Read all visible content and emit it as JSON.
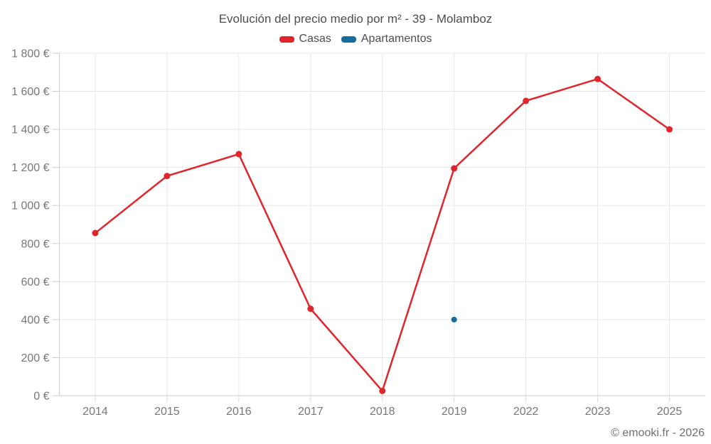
{
  "chart": {
    "title": "Evolución del precio medio por m² - 39 - Molamboz",
    "attribution": "© emooki.fr - 2026",
    "legend": [
      {
        "label": "Casas",
        "color": "#e0252b"
      },
      {
        "label": "Apartamentos",
        "color": "#156e9d"
      }
    ]
  },
  "chart_data": {
    "type": "line",
    "title": "Evolución del precio medio por m² - 39 - Molamboz",
    "xlabel": "",
    "ylabel": "",
    "categories": [
      "2014",
      "2015",
      "2016",
      "2017",
      "2018",
      "2019",
      "2022",
      "2023",
      "2025"
    ],
    "series": [
      {
        "name": "Casas",
        "color": "#e0252b",
        "marker_radius": 4.5,
        "values": [
          855,
          1155,
          1270,
          457,
          25,
          1195,
          1550,
          1665,
          1400
        ]
      },
      {
        "name": "Apartamentos",
        "color": "#156e9d",
        "marker_radius": 4,
        "values": [
          null,
          null,
          null,
          null,
          null,
          400,
          null,
          null,
          null
        ]
      }
    ],
    "ylim": [
      0,
      1800
    ],
    "ytick_step": 200,
    "ytick_labels": [
      "0 €",
      "200 €",
      "400 €",
      "600 €",
      "800 €",
      "1 000 €",
      "1 200 €",
      "1 400 €",
      "1 600 €",
      "1 800 €"
    ],
    "grid": true,
    "legend_position": "top",
    "currency": "€"
  },
  "colors": {
    "grid": "#e7e7e7",
    "axis": "#cccccc",
    "tick": "#d9d9d9",
    "tick_text": "#777777",
    "title_text": "#4d4d4d",
    "attribution_text": "#6f6f6f",
    "background": "#ffffff"
  }
}
